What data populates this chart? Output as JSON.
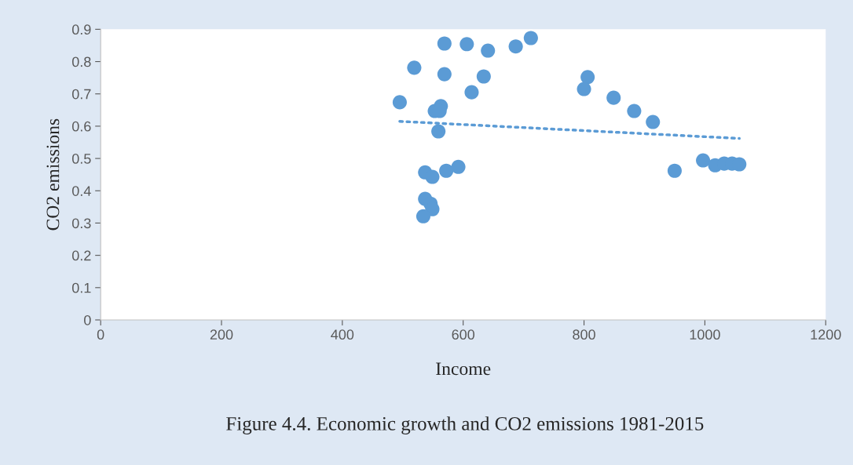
{
  "chart_data": {
    "type": "scatter",
    "title": "Figure 4.4. Economic growth and CO2 emissions 1981-2015",
    "xlabel": "Income",
    "ylabel": "CO2 emissions",
    "xlim": [
      0,
      1200
    ],
    "xticks": [
      0,
      200,
      400,
      600,
      800,
      1000,
      1200
    ],
    "ylim": [
      0,
      0.9
    ],
    "yticks": [
      0,
      0.1,
      0.2,
      0.3,
      0.4,
      0.5,
      0.6,
      0.7,
      0.8,
      0.9
    ],
    "grid": false,
    "legend": false,
    "series": [
      {
        "color": "#5b9bd5",
        "marker": "circle",
        "x": [
          495,
          519,
          569,
          606,
          641,
          687,
          712,
          569,
          634,
          614,
          563,
          553,
          561,
          559,
          537,
          549,
          572,
          592,
          537,
          546,
          549,
          534,
          806,
          800,
          849,
          883,
          914,
          950,
          997,
          1017,
          1032,
          1045,
          1057
        ],
        "values": [
          0.674,
          0.781,
          0.856,
          0.854,
          0.834,
          0.847,
          0.873,
          0.761,
          0.754,
          0.705,
          0.662,
          0.647,
          0.647,
          0.584,
          0.457,
          0.443,
          0.462,
          0.474,
          0.375,
          0.36,
          0.343,
          0.321,
          0.752,
          0.715,
          0.688,
          0.647,
          0.613,
          0.462,
          0.494,
          0.479,
          0.484,
          0.484,
          0.482
        ]
      },
      {
        "type": "line",
        "color": "#5b9bd5",
        "line_style": "dotted",
        "marker": "none",
        "x": [
          495,
          1057
        ],
        "values": [
          0.615,
          0.562
        ]
      }
    ]
  }
}
